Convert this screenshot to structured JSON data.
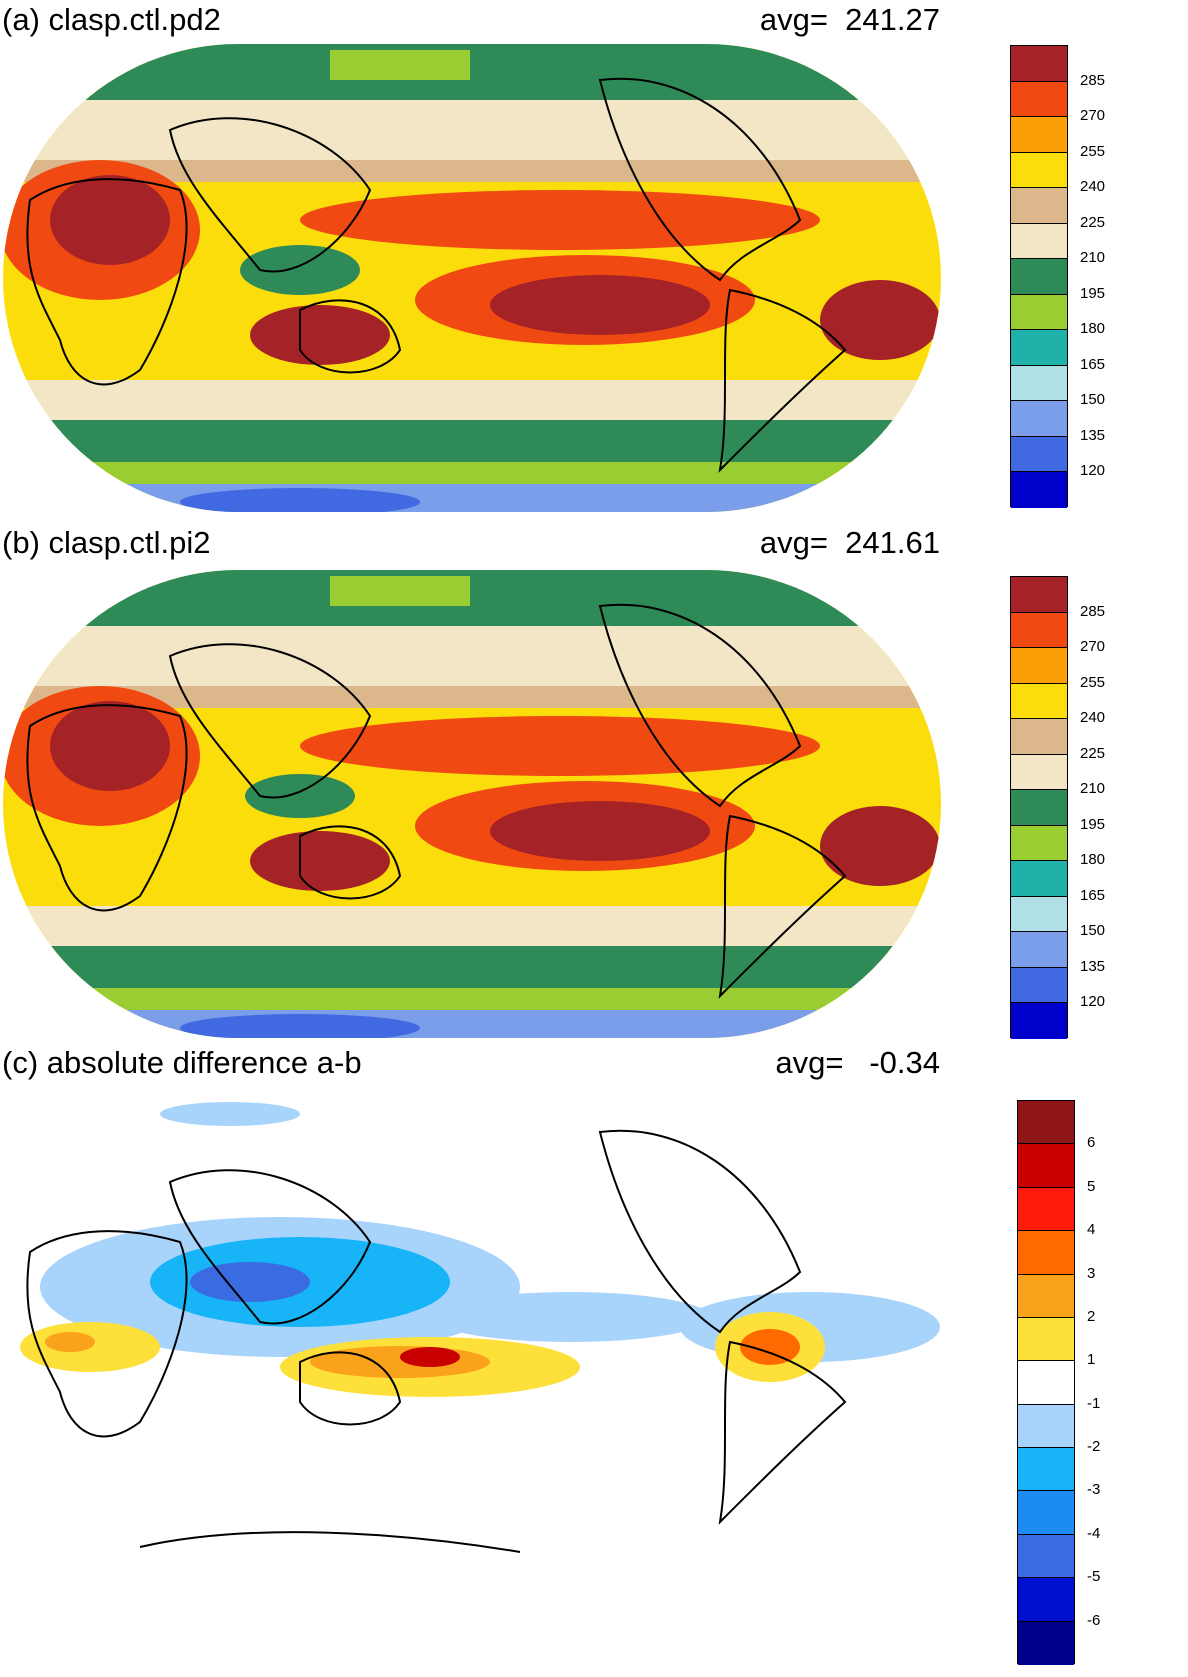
{
  "panels": [
    {
      "id": "a",
      "title": "(a) clasp.ctl.pd2",
      "avg_label": "avg=  241.27",
      "colorbar": {
        "colors": [
          "#A52226",
          "#F04A12",
          "#FB9F06",
          "#FBDD0C",
          "#DCB78C",
          "#F3E6C6",
          "#2E8B57",
          "#9ACD32",
          "#20B2AA",
          "#B0E0E6",
          "#7B9EEB",
          "#4169E1",
          "#0000CD"
        ],
        "labels": [
          "285",
          "270",
          "255",
          "240",
          "225",
          "210",
          "195",
          "180",
          "165",
          "150",
          "135",
          "120"
        ]
      }
    },
    {
      "id": "b",
      "title": "(b) clasp.ctl.pi2",
      "avg_label": "avg=  241.61",
      "colorbar": {
        "colors": [
          "#A52226",
          "#F04A12",
          "#FB9F06",
          "#FBDD0C",
          "#DCB78C",
          "#F3E6C6",
          "#2E8B57",
          "#9ACD32",
          "#20B2AA",
          "#B0E0E6",
          "#7B9EEB",
          "#4169E1",
          "#0000CD"
        ],
        "labels": [
          "285",
          "270",
          "255",
          "240",
          "225",
          "210",
          "195",
          "180",
          "165",
          "150",
          "135",
          "120"
        ]
      }
    },
    {
      "id": "c",
      "title": "(c) absolute difference a-b",
      "avg_label": "avg=   -0.34",
      "colorbar": {
        "colors": [
          "#8E1616",
          "#C80000",
          "#FF1A0A",
          "#FF6A00",
          "#FBA21C",
          "#FDE03A",
          "#FFFFFF",
          "#A8D4FB",
          "#18B4F8",
          "#1C8CF0",
          "#3A6BE0",
          "#0010D0",
          "#00008A"
        ],
        "labels": [
          "6",
          "5",
          "4",
          "3",
          "2",
          "1",
          "-1",
          "-2",
          "-3",
          "-4",
          "-5",
          "-6"
        ]
      }
    }
  ]
}
